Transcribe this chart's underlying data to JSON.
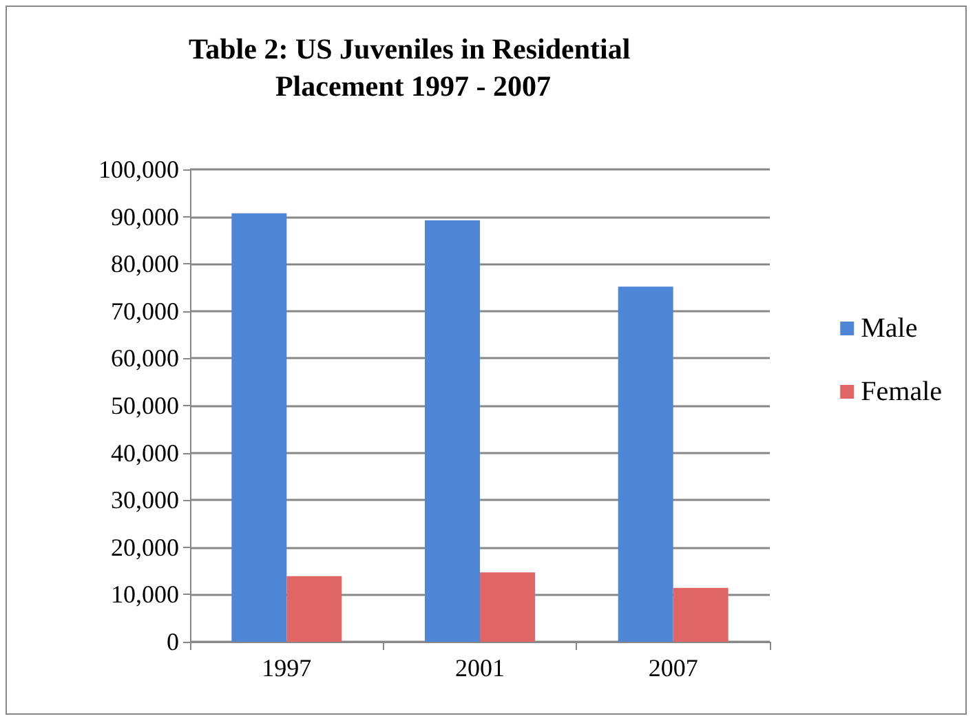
{
  "chart_data": {
    "type": "bar",
    "title": "Table 2: US Juveniles in Residential Placement 1997 - 2007",
    "categories": [
      "1997",
      "2001",
      "2007"
    ],
    "series": [
      {
        "name": "Male",
        "color": "#4f86d6",
        "values": [
          90700,
          89200,
          75200
        ]
      },
      {
        "name": "Female",
        "color": "#e06666",
        "values": [
          13900,
          14700,
          11400
        ]
      }
    ],
    "ylim": [
      0,
      100000
    ],
    "yticks": [
      0,
      {
        "value": 10000,
        "label": "10,000"
      },
      {
        "value": 20000,
        "label": "20,000"
      },
      {
        "value": 30000,
        "label": "30,000"
      },
      {
        "value": 40000,
        "label": "40,000"
      },
      {
        "value": 50000,
        "label": "50,000"
      },
      {
        "value": 60000,
        "label": "60,000"
      },
      {
        "value": 70000,
        "label": "70,000"
      },
      {
        "value": 80000,
        "label": "80,000"
      },
      {
        "value": 90000,
        "label": "90,000"
      },
      {
        "value": 100000,
        "label": "100,000"
      }
    ],
    "grid": "y",
    "legend": "right"
  }
}
